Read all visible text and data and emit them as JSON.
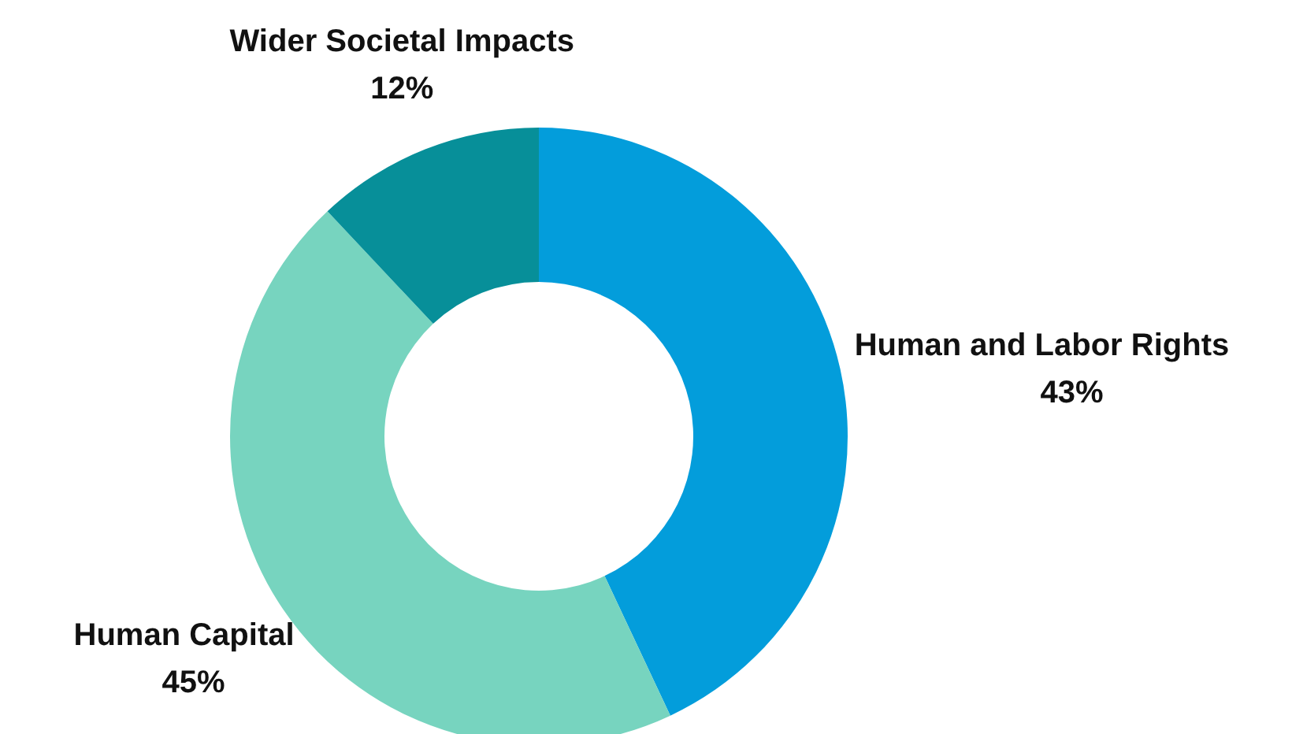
{
  "chart_data": {
    "type": "donut",
    "categories": [
      "Human and Labor Rights",
      "Human Capital",
      "Wider Societal Impacts"
    ],
    "values": [
      43,
      45,
      12
    ],
    "colors": [
      "#039ddb",
      "#77d4bf",
      "#078f99"
    ],
    "value_labels": [
      "43%",
      "45%",
      "12%"
    ],
    "legend": false
  }
}
